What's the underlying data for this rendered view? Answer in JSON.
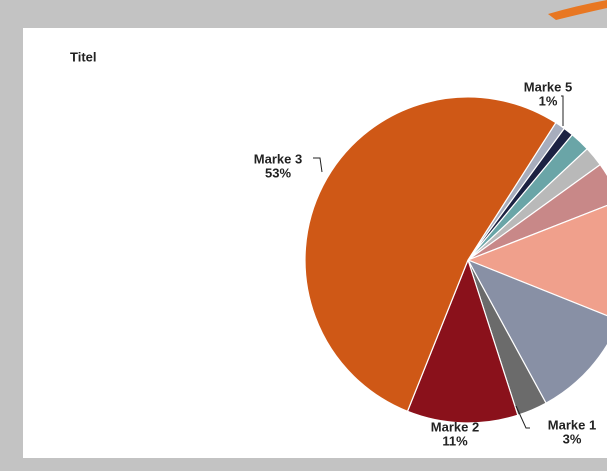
{
  "chart_data": {
    "type": "pie",
    "title": "Titel",
    "categories": [
      null,
      "Marke 5",
      null,
      null,
      null,
      null,
      null,
      "Marke 1",
      "Marke 2",
      "Marke 3"
    ],
    "values": [
      1,
      1,
      2,
      2,
      4,
      12,
      11,
      3,
      11,
      53
    ],
    "value_labels": [
      null,
      "1%",
      null,
      null,
      null,
      null,
      null,
      "3%",
      "11%",
      "53%"
    ],
    "colors": [
      "#a7adbd",
      "#1c2242",
      "#6aa5a7",
      "#b9b9b9",
      "#c88888",
      "#f0a08c",
      "#8890a5",
      "#6b6b6b",
      "#8a111b",
      "#cf5816"
    ]
  }
}
